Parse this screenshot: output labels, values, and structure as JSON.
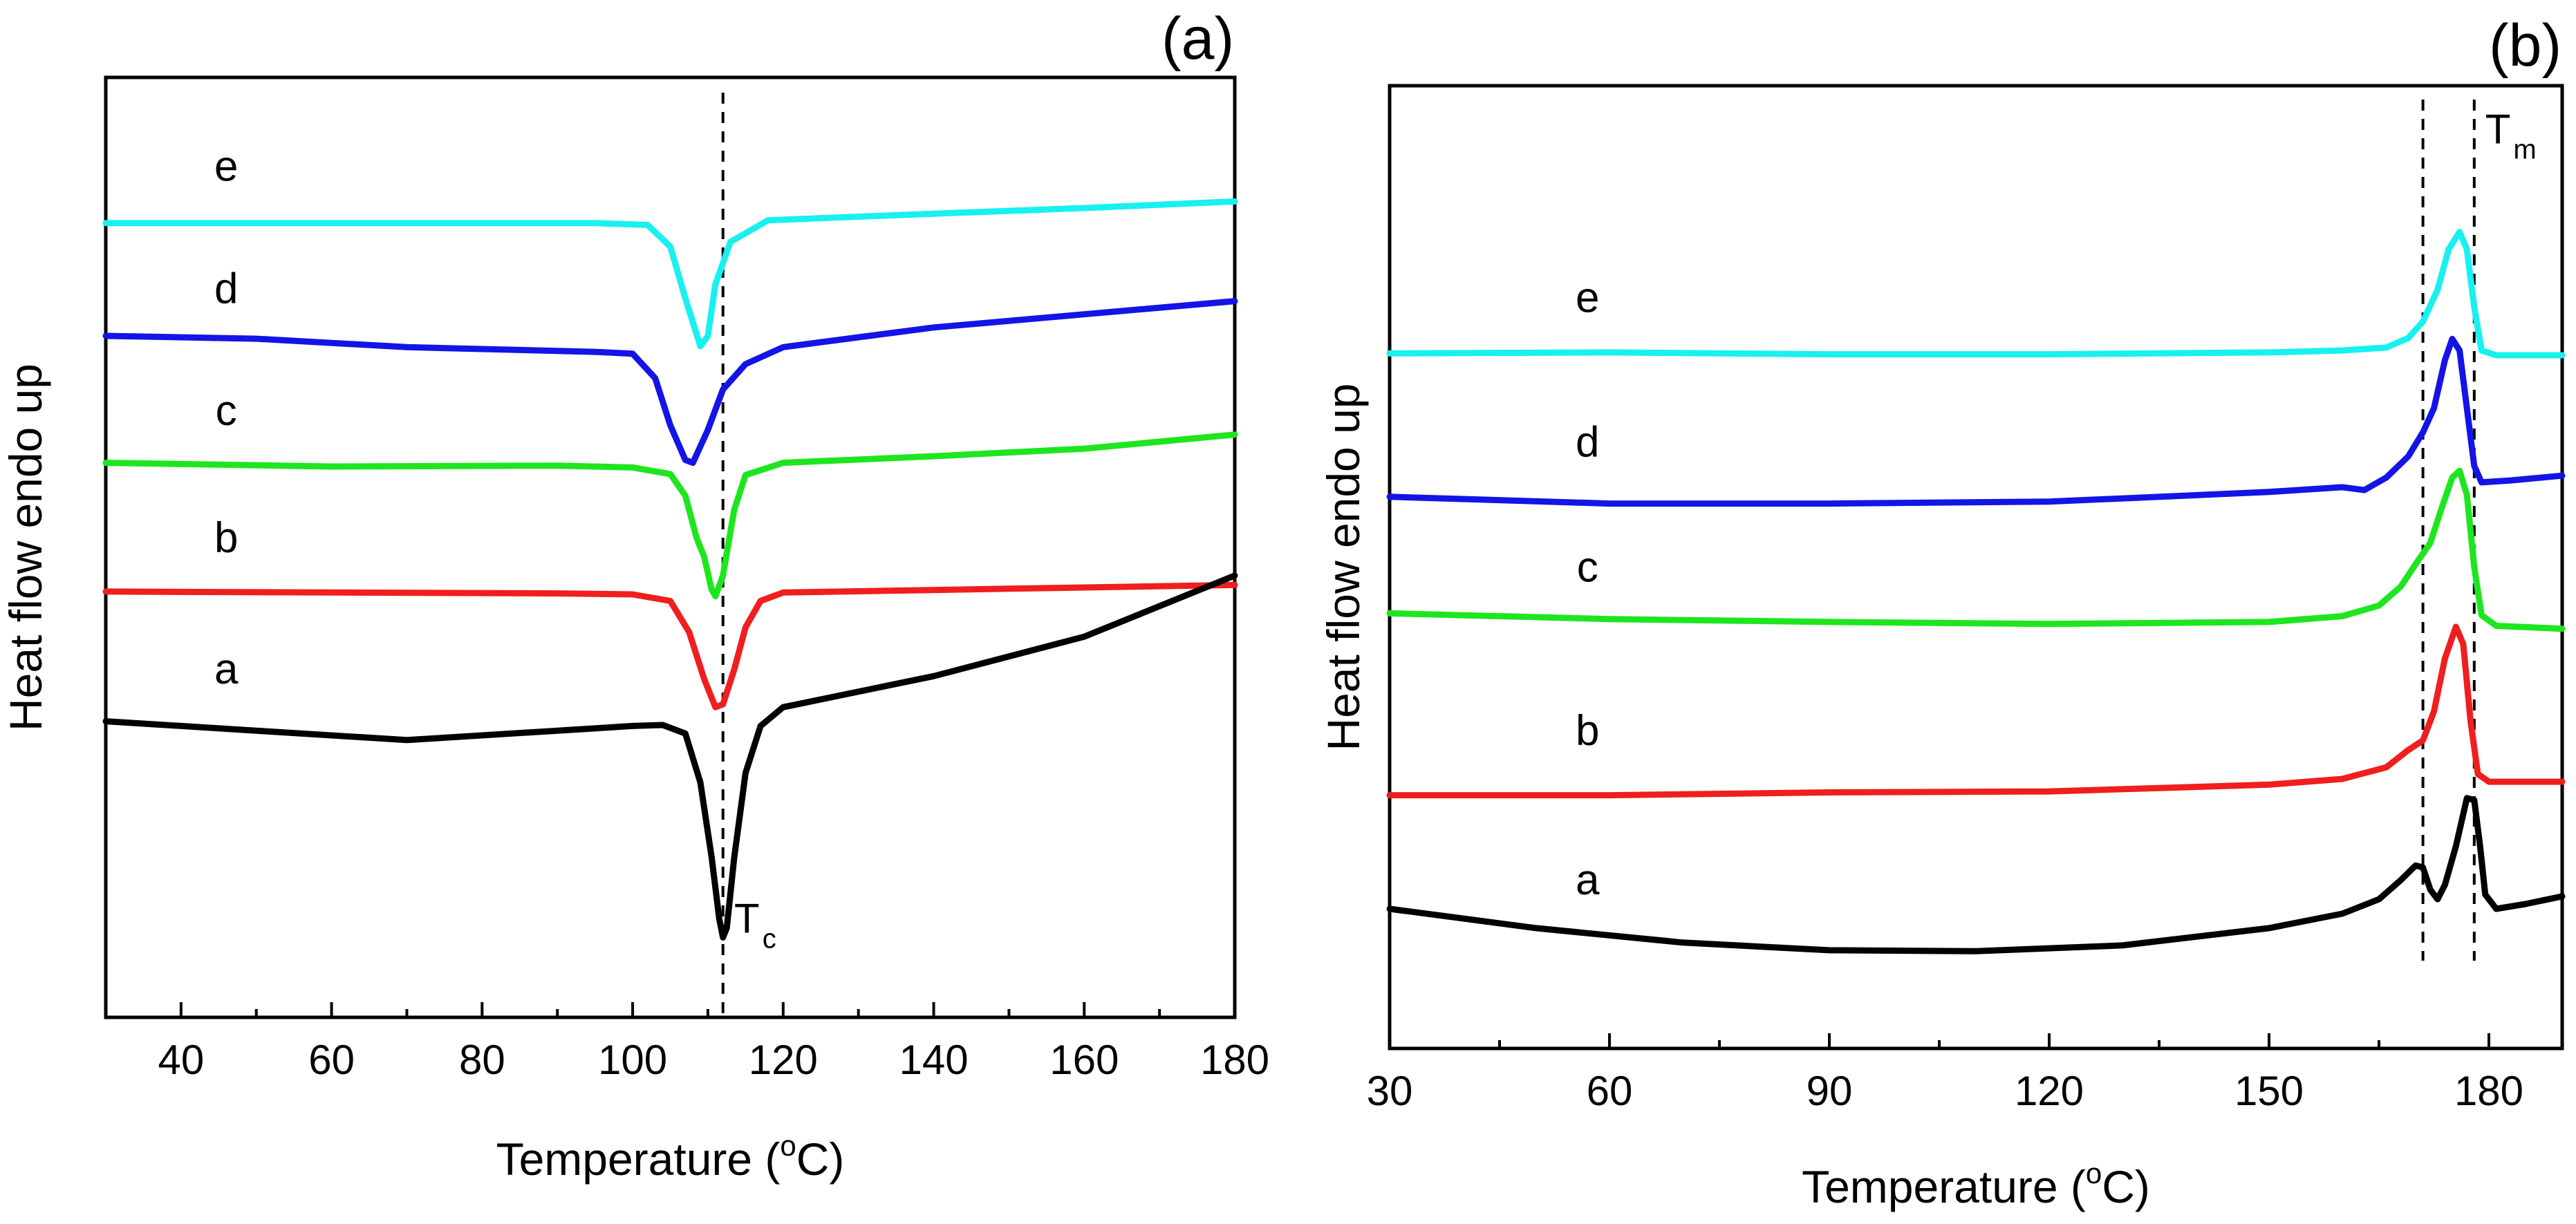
{
  "chart_data": [
    {
      "id": "a",
      "type": "line",
      "panel_label": "(a)",
      "xlabel": "Temperature (",
      "xlabel_sup": "o",
      "xlabel_tail": "C)",
      "ylabel": "Heat flow endo up",
      "xlim": [
        30,
        180
      ],
      "ylim": [
        0,
        100
      ],
      "x_ticks": [
        40,
        60,
        80,
        100,
        120,
        140,
        160,
        180
      ],
      "x_ticks_major": [
        40,
        60,
        80,
        100,
        120,
        140,
        160,
        180
      ],
      "x_ticks_minor": [
        30,
        50,
        70,
        90,
        110,
        130,
        150,
        170
      ],
      "vlines": [
        112
      ],
      "annotation": {
        "main": "T",
        "sub": "c",
        "x": 113.5,
        "y": 9
      },
      "series": [
        {
          "name": "e",
          "color": "#19f0f0",
          "label_x": 46,
          "label_y": 89,
          "points": [
            [
              30,
              84.5
            ],
            [
              60,
              84.5
            ],
            [
              95,
              84.5
            ],
            [
              102,
              84.3
            ],
            [
              105,
              82
            ],
            [
              107,
              76.5
            ],
            [
              109,
              71.4
            ],
            [
              110,
              72.5
            ],
            [
              111,
              78
            ],
            [
              113,
              82.5
            ],
            [
              118,
              84.8
            ],
            [
              140,
              85.5
            ],
            [
              160,
              86.1
            ],
            [
              180,
              86.8
            ]
          ]
        },
        {
          "name": "d",
          "color": "#1414e6",
          "label_x": 46,
          "label_y": 76,
          "points": [
            [
              30,
              72.5
            ],
            [
              50,
              72.2
            ],
            [
              70,
              71.3
            ],
            [
              95,
              70.8
            ],
            [
              100,
              70.6
            ],
            [
              103,
              68
            ],
            [
              105,
              63
            ],
            [
              107,
              59.3
            ],
            [
              108,
              59
            ],
            [
              110,
              62.5
            ],
            [
              112,
              66.8
            ],
            [
              115,
              69.5
            ],
            [
              120,
              71.3
            ],
            [
              140,
              73.4
            ],
            [
              160,
              74.8
            ],
            [
              180,
              76.2
            ]
          ]
        },
        {
          "name": "c",
          "color": "#1ee61e",
          "label_x": 46,
          "label_y": 63,
          "points": [
            [
              30,
              59
            ],
            [
              60,
              58.6
            ],
            [
              90,
              58.7
            ],
            [
              100,
              58.5
            ],
            [
              105,
              57.8
            ],
            [
              107,
              55.5
            ],
            [
              108.5,
              51
            ],
            [
              109.5,
              49
            ],
            [
              110.5,
              45.5
            ],
            [
              111,
              44.8
            ],
            [
              112,
              47
            ],
            [
              113.5,
              54
            ],
            [
              115,
              57.7
            ],
            [
              120,
              59
            ],
            [
              140,
              59.7
            ],
            [
              160,
              60.5
            ],
            [
              180,
              62
            ]
          ]
        },
        {
          "name": "b",
          "color": "#f01e1e",
          "label_x": 46,
          "label_y": 49.5,
          "points": [
            [
              30,
              45.3
            ],
            [
              60,
              45.2
            ],
            [
              90,
              45.1
            ],
            [
              100,
              45
            ],
            [
              105,
              44.3
            ],
            [
              107.5,
              41
            ],
            [
              109.5,
              36
            ],
            [
              111,
              33
            ],
            [
              112,
              33.3
            ],
            [
              113.5,
              37
            ],
            [
              115,
              41.5
            ],
            [
              117,
              44.3
            ],
            [
              120,
              45.2
            ],
            [
              150,
              45.6
            ],
            [
              180,
              46
            ]
          ]
        },
        {
          "name": "a",
          "color": "#000000",
          "label_x": 46,
          "label_y": 35.5,
          "points": [
            [
              30,
              31.5
            ],
            [
              50,
              30.5
            ],
            [
              70,
              29.5
            ],
            [
              90,
              30.5
            ],
            [
              100,
              31
            ],
            [
              104,
              31.1
            ],
            [
              107,
              30.2
            ],
            [
              109,
              25
            ],
            [
              110.5,
              17
            ],
            [
              111.5,
              10.5
            ],
            [
              112,
              8.5
            ],
            [
              112.5,
              9.5
            ],
            [
              113.5,
              17
            ],
            [
              115,
              26
            ],
            [
              117,
              31
            ],
            [
              120,
              33
            ],
            [
              140,
              36.3
            ],
            [
              160,
              40.5
            ],
            [
              180,
              47
            ]
          ]
        }
      ]
    },
    {
      "id": "b",
      "type": "line",
      "panel_label": "(b)",
      "xlabel": "Temperature (",
      "xlabel_sup": "o",
      "xlabel_tail": "C)",
      "ylabel": "Heat flow endo up",
      "xlim": [
        30,
        190
      ],
      "ylim": [
        0,
        100
      ],
      "x_ticks": [
        30,
        60,
        90,
        120,
        150,
        180
      ],
      "x_ticks_major": [
        30,
        60,
        90,
        120,
        150,
        180
      ],
      "x_ticks_minor": [
        45,
        75,
        105,
        135,
        165
      ],
      "vlines": [
        171,
        178
      ],
      "annotation": {
        "main": "T",
        "sub": "m",
        "x": 179.5,
        "y": 94
      },
      "series": [
        {
          "name": "e",
          "color": "#19f0f0",
          "label_x": 57,
          "label_y": 76.5,
          "points": [
            [
              30,
              72.2
            ],
            [
              60,
              72.3
            ],
            [
              90,
              72.1
            ],
            [
              120,
              72.1
            ],
            [
              150,
              72.3
            ],
            [
              160,
              72.5
            ],
            [
              166,
              72.8
            ],
            [
              169,
              73.8
            ],
            [
              171,
              75.5
            ],
            [
              173,
              78.8
            ],
            [
              174.5,
              83
            ],
            [
              176,
              84.8
            ],
            [
              177,
              83
            ],
            [
              178,
              77
            ],
            [
              179,
              72.5
            ],
            [
              181,
              72
            ],
            [
              190,
              72
            ]
          ]
        },
        {
          "name": "d",
          "color": "#1414e6",
          "label_x": 57,
          "label_y": 61.5,
          "points": [
            [
              30,
              57.3
            ],
            [
              60,
              56.6
            ],
            [
              90,
              56.6
            ],
            [
              120,
              56.8
            ],
            [
              150,
              57.8
            ],
            [
              160,
              58.3
            ],
            [
              163,
              58
            ],
            [
              166,
              59.3
            ],
            [
              169,
              61.5
            ],
            [
              171,
              64
            ],
            [
              172.5,
              66.5
            ],
            [
              174,
              71.5
            ],
            [
              175,
              73.7
            ],
            [
              176,
              72.5
            ],
            [
              177,
              66.5
            ],
            [
              178,
              60.5
            ],
            [
              179,
              58.8
            ],
            [
              183,
              59
            ],
            [
              190,
              59.5
            ]
          ]
        },
        {
          "name": "c",
          "color": "#1ee61e",
          "label_x": 57,
          "label_y": 48.5,
          "points": [
            [
              30,
              45.2
            ],
            [
              60,
              44.6
            ],
            [
              90,
              44.3
            ],
            [
              120,
              44.1
            ],
            [
              150,
              44.3
            ],
            [
              160,
              44.9
            ],
            [
              165,
              46
            ],
            [
              168,
              48
            ],
            [
              170,
              50.3
            ],
            [
              172,
              52.5
            ],
            [
              173.5,
              56
            ],
            [
              175,
              59.3
            ],
            [
              176,
              60
            ],
            [
              177,
              57.5
            ],
            [
              178,
              50
            ],
            [
              179,
              45
            ],
            [
              181,
              43.9
            ],
            [
              190,
              43.6
            ]
          ]
        },
        {
          "name": "b",
          "color": "#f01e1e",
          "label_x": 57,
          "label_y": 31.5,
          "points": [
            [
              30,
              26.3
            ],
            [
              60,
              26.3
            ],
            [
              90,
              26.6
            ],
            [
              120,
              26.7
            ],
            [
              150,
              27.4
            ],
            [
              160,
              28
            ],
            [
              166,
              29.2
            ],
            [
              169,
              31
            ],
            [
              171,
              32
            ],
            [
              172.5,
              35
            ],
            [
              174,
              40.5
            ],
            [
              175.5,
              43.8
            ],
            [
              176.5,
              42
            ],
            [
              177.5,
              34
            ],
            [
              178.5,
              28.5
            ],
            [
              180,
              27.7
            ],
            [
              190,
              27.7
            ]
          ]
        },
        {
          "name": "a",
          "color": "#000000",
          "label_x": 57,
          "label_y": 16,
          "points": [
            [
              30,
              14.5
            ],
            [
              50,
              12.5
            ],
            [
              70,
              11
            ],
            [
              90,
              10.2
            ],
            [
              110,
              10.1
            ],
            [
              130,
              10.7
            ],
            [
              150,
              12.5
            ],
            [
              160,
              14
            ],
            [
              165,
              15.5
            ],
            [
              168,
              17.5
            ],
            [
              170,
              19
            ],
            [
              171,
              18.8
            ],
            [
              172,
              16.5
            ],
            [
              173,
              15.5
            ],
            [
              174,
              17
            ],
            [
              175.5,
              21
            ],
            [
              177,
              26
            ],
            [
              178,
              25.8
            ],
            [
              178.8,
              21
            ],
            [
              179.5,
              16
            ],
            [
              181,
              14.5
            ],
            [
              185,
              15
            ],
            [
              190,
              15.8
            ]
          ]
        }
      ]
    }
  ]
}
